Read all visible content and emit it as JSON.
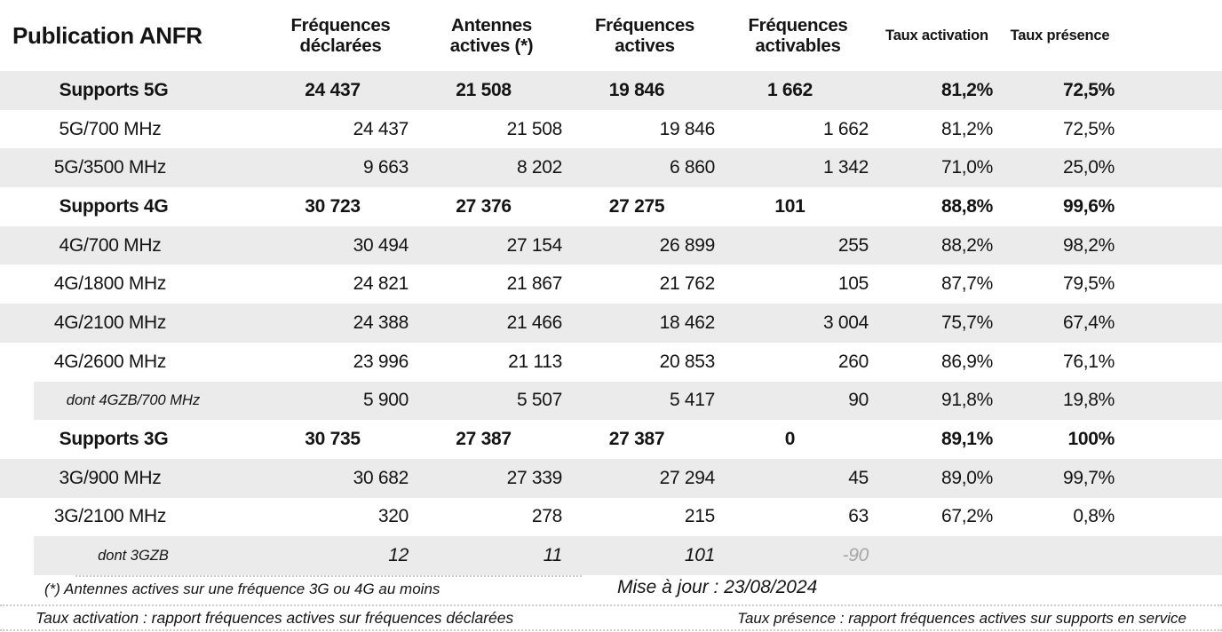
{
  "chart_data": {
    "type": "table",
    "title": "Publication ANFR",
    "columns": [
      "Fréquences déclarées",
      "Antennes actives (*)",
      "Fréquences actives",
      "Fréquences activables",
      "Taux activation",
      "Taux présence"
    ],
    "rows": [
      {
        "label": "Supports 5G",
        "kind": "group",
        "values": [
          "24 437",
          "21 508",
          "19 846",
          "1 662",
          "81,2%",
          "72,5%"
        ]
      },
      {
        "label": "5G/700 MHz",
        "kind": "detail",
        "values": [
          "24 437",
          "21 508",
          "19 846",
          "1 662",
          "81,2%",
          "72,5%"
        ]
      },
      {
        "label": "5G/3500 MHz",
        "kind": "detail",
        "values": [
          "9 663",
          "8 202",
          "6 860",
          "1 342",
          "71,0%",
          "25,0%"
        ]
      },
      {
        "label": "Supports 4G",
        "kind": "group",
        "values": [
          "30 723",
          "27 376",
          "27 275",
          "101",
          "88,8%",
          "99,6%"
        ]
      },
      {
        "label": "4G/700 MHz",
        "kind": "detail",
        "values": [
          "30 494",
          "27 154",
          "26 899",
          "255",
          "88,2%",
          "98,2%"
        ]
      },
      {
        "label": "4G/1800 MHz",
        "kind": "detail",
        "values": [
          "24 821",
          "21 867",
          "21 762",
          "105",
          "87,7%",
          "79,5%"
        ]
      },
      {
        "label": "4G/2100 MHz",
        "kind": "detail",
        "values": [
          "24 388",
          "21 466",
          "18 462",
          "3 004",
          "75,7%",
          "67,4%"
        ]
      },
      {
        "label": "4G/2600 MHz",
        "kind": "detail",
        "values": [
          "23 996",
          "21 113",
          "20 853",
          "260",
          "86,9%",
          "76,1%"
        ]
      },
      {
        "label": "dont 4GZB/700 MHz",
        "kind": "sub",
        "values": [
          "5 900",
          "5 507",
          "5 417",
          "90",
          "91,8%",
          "19,8%"
        ]
      },
      {
        "label": "Supports 3G",
        "kind": "group",
        "values": [
          "30 735",
          "27 387",
          "27 387",
          "0",
          "89,1%",
          "100%"
        ]
      },
      {
        "label": "3G/900 MHz",
        "kind": "detail",
        "values": [
          "30 682",
          "27 339",
          "27 294",
          "45",
          "89,0%",
          "99,7%"
        ]
      },
      {
        "label": "3G/2100 MHz",
        "kind": "detail",
        "values": [
          "320",
          "278",
          "215",
          "63",
          "67,2%",
          "0,8%"
        ]
      },
      {
        "label": "dont 3GZB",
        "kind": "sub",
        "values": [
          "12",
          "11",
          "101",
          "-90",
          "",
          ""
        ]
      }
    ]
  },
  "footnotes": {
    "asterisk": "(*) Antennes actives sur une fréquence 3G ou 4G au moins",
    "updated": "Mise à jour : 23/08/2024",
    "taux_activation": "Taux activation : rapport fréquences actives sur fréquences déclarées",
    "taux_presence": "Taux présence : rapport fréquences actives sur supports en service"
  },
  "colors": {
    "row_band": "#ebebeb",
    "muted_value": "#a6a6a6",
    "text": "#141414",
    "dotted_rule": "#cccccc"
  }
}
